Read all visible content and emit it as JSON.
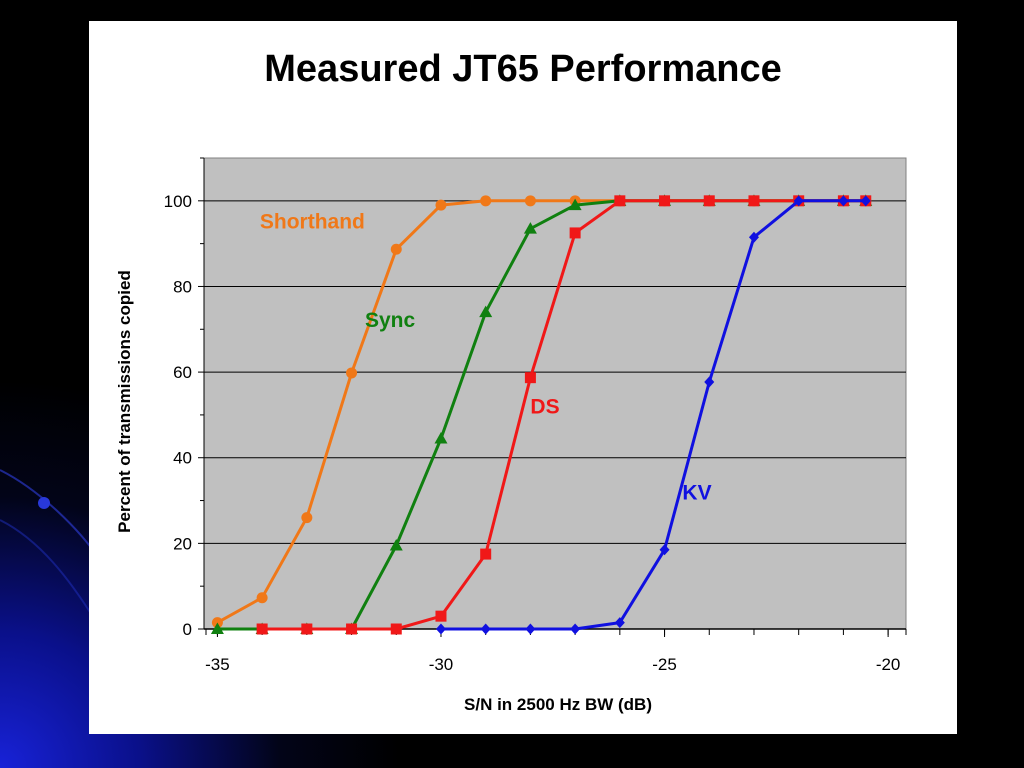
{
  "slide": {
    "background_color": "#000000",
    "accent_color": "#1018c8"
  },
  "chart_data": {
    "type": "line",
    "title": "Measured JT65 Performance",
    "xlabel": "S/N in 2500 Hz BW (dB)",
    "ylabel": "Percent of transmissions copied",
    "xlim": [
      -35.3,
      -19.6
    ],
    "ylim": [
      0,
      110
    ],
    "xticks": [
      -35,
      -30,
      -25,
      -20
    ],
    "xtick_labels": [
      "-35",
      "-30",
      "-25",
      "-20"
    ],
    "yticks": [
      0,
      20,
      40,
      60,
      80,
      100
    ],
    "ytick_labels": [
      "0",
      "20",
      "40",
      "60",
      "80",
      "100"
    ],
    "grid": "horizontal",
    "plot_background": "#c0c0c0",
    "legend": "inline labels",
    "series": [
      {
        "name": "Shorthand",
        "color": "#f07818",
        "marker": "circle",
        "x": [
          -35,
          -34,
          -33,
          -32,
          -31,
          -30,
          -29,
          -28,
          -27,
          -26,
          -25,
          -24,
          -23,
          -22,
          -21,
          -20.5
        ],
        "y": [
          1.5,
          7.3,
          26,
          59.8,
          88.7,
          99,
          100,
          100,
          100,
          100,
          100,
          100,
          100,
          100,
          100,
          100
        ]
      },
      {
        "name": "Sync",
        "color": "#108010",
        "marker": "triangle",
        "x": [
          -35,
          -34,
          -33,
          -32,
          -31,
          -30,
          -29,
          -28,
          -27,
          -26,
          -25,
          -24,
          -23,
          -22,
          -21,
          -20.5
        ],
        "y": [
          0,
          0,
          0,
          0,
          19.5,
          44.5,
          74,
          93.5,
          99,
          100,
          100,
          100,
          100,
          100,
          100,
          100
        ]
      },
      {
        "name": "DS",
        "color": "#f01818",
        "marker": "square",
        "x": [
          -34,
          -33,
          -32,
          -31,
          -30,
          -29,
          -28,
          -27,
          -26,
          -25,
          -24,
          -23,
          -22,
          -21,
          -20.5
        ],
        "y": [
          0,
          0,
          0,
          0,
          3,
          17.5,
          58.7,
          92.5,
          100,
          100,
          100,
          100,
          100,
          100,
          100
        ]
      },
      {
        "name": "KV",
        "color": "#1010e0",
        "marker": "diamond",
        "x": [
          -30,
          -29,
          -28,
          -27,
          -26,
          -25,
          -24,
          -23,
          -22,
          -21,
          -20.5
        ],
        "y": [
          0,
          0,
          0,
          0,
          1.5,
          18.5,
          57.7,
          91.5,
          100,
          100,
          100
        ]
      }
    ],
    "annotations": [
      {
        "text": "Shorthand",
        "series": "Shorthand"
      },
      {
        "text": "Sync",
        "series": "Sync"
      },
      {
        "text": "DS",
        "series": "DS"
      },
      {
        "text": "KV",
        "series": "KV"
      }
    ]
  }
}
